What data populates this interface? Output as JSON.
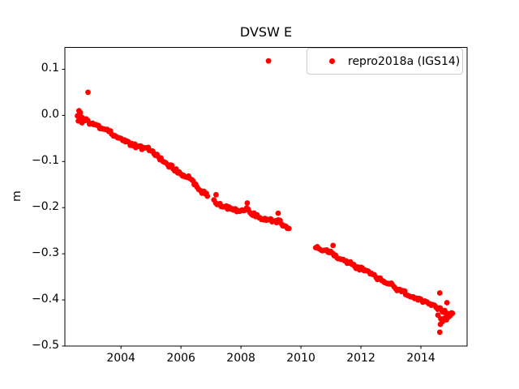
{
  "figure": {
    "background": "#ffffff",
    "text_color": "#000000"
  },
  "chart_data": {
    "type": "scatter",
    "title": "DVSW E",
    "xlabel": "",
    "ylabel": "m",
    "xlim": [
      2002.13,
      2015.54
    ],
    "ylim": [
      -0.5,
      0.1474
    ],
    "grid": false,
    "legend_position": "upper right",
    "legend_border_color": "#cccccc",
    "xticks": [
      {
        "v": 2004,
        "label": "2004"
      },
      {
        "v": 2006,
        "label": "2006"
      },
      {
        "v": 2008,
        "label": "2008"
      },
      {
        "v": 2010,
        "label": "2010"
      },
      {
        "v": 2012,
        "label": "2012"
      },
      {
        "v": 2014,
        "label": "2014"
      }
    ],
    "yticks": [
      {
        "v": 0.1,
        "label": "0.1"
      },
      {
        "v": 0.0,
        "label": "0.0"
      },
      {
        "v": -0.1,
        "label": "−0.1"
      },
      {
        "v": -0.2,
        "label": "−0.2"
      },
      {
        "v": -0.3,
        "label": "−0.3"
      },
      {
        "v": -0.4,
        "label": "−0.4"
      },
      {
        "v": -0.5,
        "label": "−0.5"
      }
    ],
    "series": [
      {
        "name": "repro2018a (IGS14)",
        "color": "#ff0000",
        "marker": "circle",
        "segments": [
          [
            [
              2002.56,
              -0.002
            ],
            [
              2002.65,
              0.001
            ],
            [
              2002.75,
              -0.009
            ],
            [
              2002.9,
              -0.013
            ],
            [
              2003.05,
              -0.019
            ],
            [
              2003.25,
              -0.025
            ],
            [
              2003.45,
              -0.031
            ],
            [
              2003.65,
              -0.037
            ],
            [
              2003.85,
              -0.045
            ],
            [
              2004.05,
              -0.052
            ],
            [
              2004.25,
              -0.059
            ],
            [
              2004.45,
              -0.066
            ],
            [
              2004.6,
              -0.07
            ],
            [
              2004.8,
              -0.071
            ],
            [
              2005.0,
              -0.074
            ],
            [
              2005.2,
              -0.088
            ],
            [
              2005.4,
              -0.098
            ],
            [
              2005.6,
              -0.108
            ],
            [
              2005.8,
              -0.117
            ],
            [
              2006.0,
              -0.126
            ],
            [
              2006.2,
              -0.133
            ],
            [
              2006.35,
              -0.141
            ],
            [
              2006.5,
              -0.152
            ],
            [
              2006.65,
              -0.162
            ],
            [
              2006.8,
              -0.171
            ],
            [
              2006.88,
              -0.175
            ]
          ],
          [
            [
              2007.1,
              -0.186
            ],
            [
              2007.25,
              -0.192
            ],
            [
              2007.45,
              -0.197
            ],
            [
              2007.65,
              -0.201
            ],
            [
              2007.85,
              -0.205
            ],
            [
              2008.05,
              -0.206
            ],
            [
              2008.2,
              -0.203
            ],
            [
              2008.35,
              -0.211
            ],
            [
              2008.55,
              -0.218
            ],
            [
              2008.75,
              -0.224
            ],
            [
              2008.95,
              -0.228
            ],
            [
              2009.15,
              -0.229
            ],
            [
              2009.3,
              -0.231
            ],
            [
              2009.45,
              -0.238
            ],
            [
              2009.6,
              -0.245
            ]
          ],
          [
            [
              2010.5,
              -0.284
            ],
            [
              2010.65,
              -0.289
            ],
            [
              2010.8,
              -0.292
            ],
            [
              2010.95,
              -0.297
            ],
            [
              2011.15,
              -0.304
            ],
            [
              2011.35,
              -0.311
            ],
            [
              2011.55,
              -0.318
            ],
            [
              2011.75,
              -0.325
            ],
            [
              2011.95,
              -0.331
            ],
            [
              2012.15,
              -0.336
            ],
            [
              2012.35,
              -0.344
            ],
            [
              2012.55,
              -0.353
            ],
            [
              2012.75,
              -0.359
            ],
            [
              2013.0,
              -0.367
            ],
            [
              2013.2,
              -0.377
            ],
            [
              2013.4,
              -0.383
            ],
            [
              2013.6,
              -0.388
            ],
            [
              2013.8,
              -0.396
            ],
            [
              2014.0,
              -0.402
            ],
            [
              2014.2,
              -0.408
            ],
            [
              2014.4,
              -0.414
            ],
            [
              2014.6,
              -0.42
            ],
            [
              2014.8,
              -0.426
            ],
            [
              2015.0,
              -0.431
            ],
            [
              2015.05,
              -0.429
            ]
          ]
        ],
        "extra_points": [
          [
            2002.9,
            0.05
          ],
          [
            2008.92,
            0.118
          ],
          [
            2007.17,
            -0.172
          ],
          [
            2008.21,
            -0.19
          ],
          [
            2009.24,
            -0.212
          ],
          [
            2011.07,
            -0.282
          ],
          [
            2014.63,
            -0.385
          ],
          [
            2014.87,
            -0.406
          ],
          [
            2002.6,
            0.01
          ],
          [
            2002.65,
            0.006
          ],
          [
            2002.58,
            -0.012
          ],
          [
            2002.7,
            -0.016
          ],
          [
            2014.57,
            -0.433
          ],
          [
            2014.66,
            -0.441
          ],
          [
            2014.72,
            -0.447
          ],
          [
            2014.78,
            -0.44
          ],
          [
            2014.85,
            -0.443
          ],
          [
            2014.92,
            -0.437
          ],
          [
            2014.98,
            -0.434
          ],
          [
            2015.02,
            -0.428
          ],
          [
            2014.65,
            -0.453
          ],
          [
            2014.63,
            -0.47
          ]
        ]
      }
    ]
  }
}
